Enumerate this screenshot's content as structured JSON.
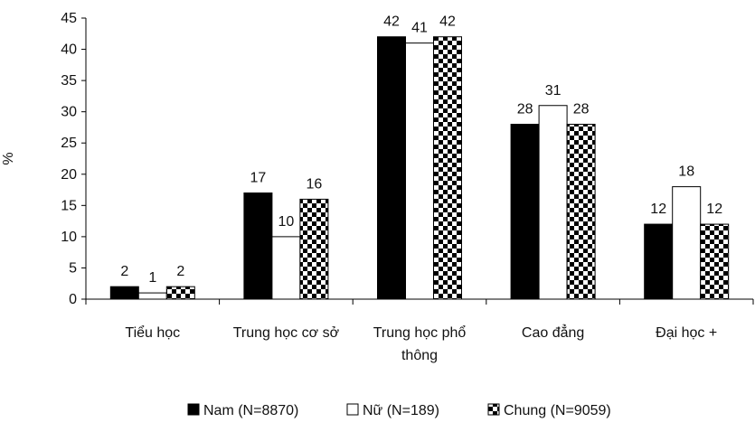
{
  "chart_data": {
    "type": "bar",
    "title": "",
    "xlabel": "",
    "ylabel": "%",
    "ylim": [
      0,
      45
    ],
    "yticks": [
      0,
      5,
      10,
      15,
      20,
      25,
      30,
      35,
      40,
      45
    ],
    "grid": false,
    "legend_position": "bottom",
    "categories": [
      [
        "Tiểu học"
      ],
      [
        "Trung học cơ sở"
      ],
      [
        "Trung học phổ",
        "thông"
      ],
      [
        "Cao đẳng"
      ],
      [
        "Đại học +"
      ]
    ],
    "series": [
      {
        "name": "Nam (N=8870)",
        "values": [
          2,
          17,
          42,
          28,
          12
        ],
        "labels": [
          "2",
          "17",
          "42",
          "28",
          "12"
        ],
        "fill": "solid",
        "color": "#000000"
      },
      {
        "name": "Nữ (N=189)",
        "values": [
          1,
          10,
          41,
          31,
          18
        ],
        "labels": [
          "1",
          "10",
          "41",
          "31",
          "18"
        ],
        "fill": "none",
        "color": "#ffffff"
      },
      {
        "name": "Chung (N=9059)",
        "values": [
          2,
          16,
          42,
          28,
          12
        ],
        "labels": [
          "2",
          "16",
          "42",
          "28",
          "12"
        ],
        "fill": "checker",
        "color": "#000000"
      }
    ]
  }
}
